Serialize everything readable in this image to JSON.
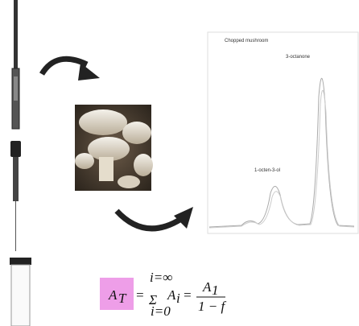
{
  "diagram": {
    "chromatogram": {
      "title": "Chopped mushroom",
      "peak_labels": [
        "3-octanone",
        "1-octen-3-ol"
      ]
    },
    "formula": {
      "lhs": "A",
      "lhs_sub": "T",
      "equals": "=",
      "sum_upper": "i=∞",
      "sigma": "Σ",
      "sum_lower": "i=0",
      "term": "A",
      "term_sub": "i",
      "equals2": "=",
      "numerator": "A",
      "numerator_sub": "1",
      "denominator": "1 − f"
    }
  }
}
